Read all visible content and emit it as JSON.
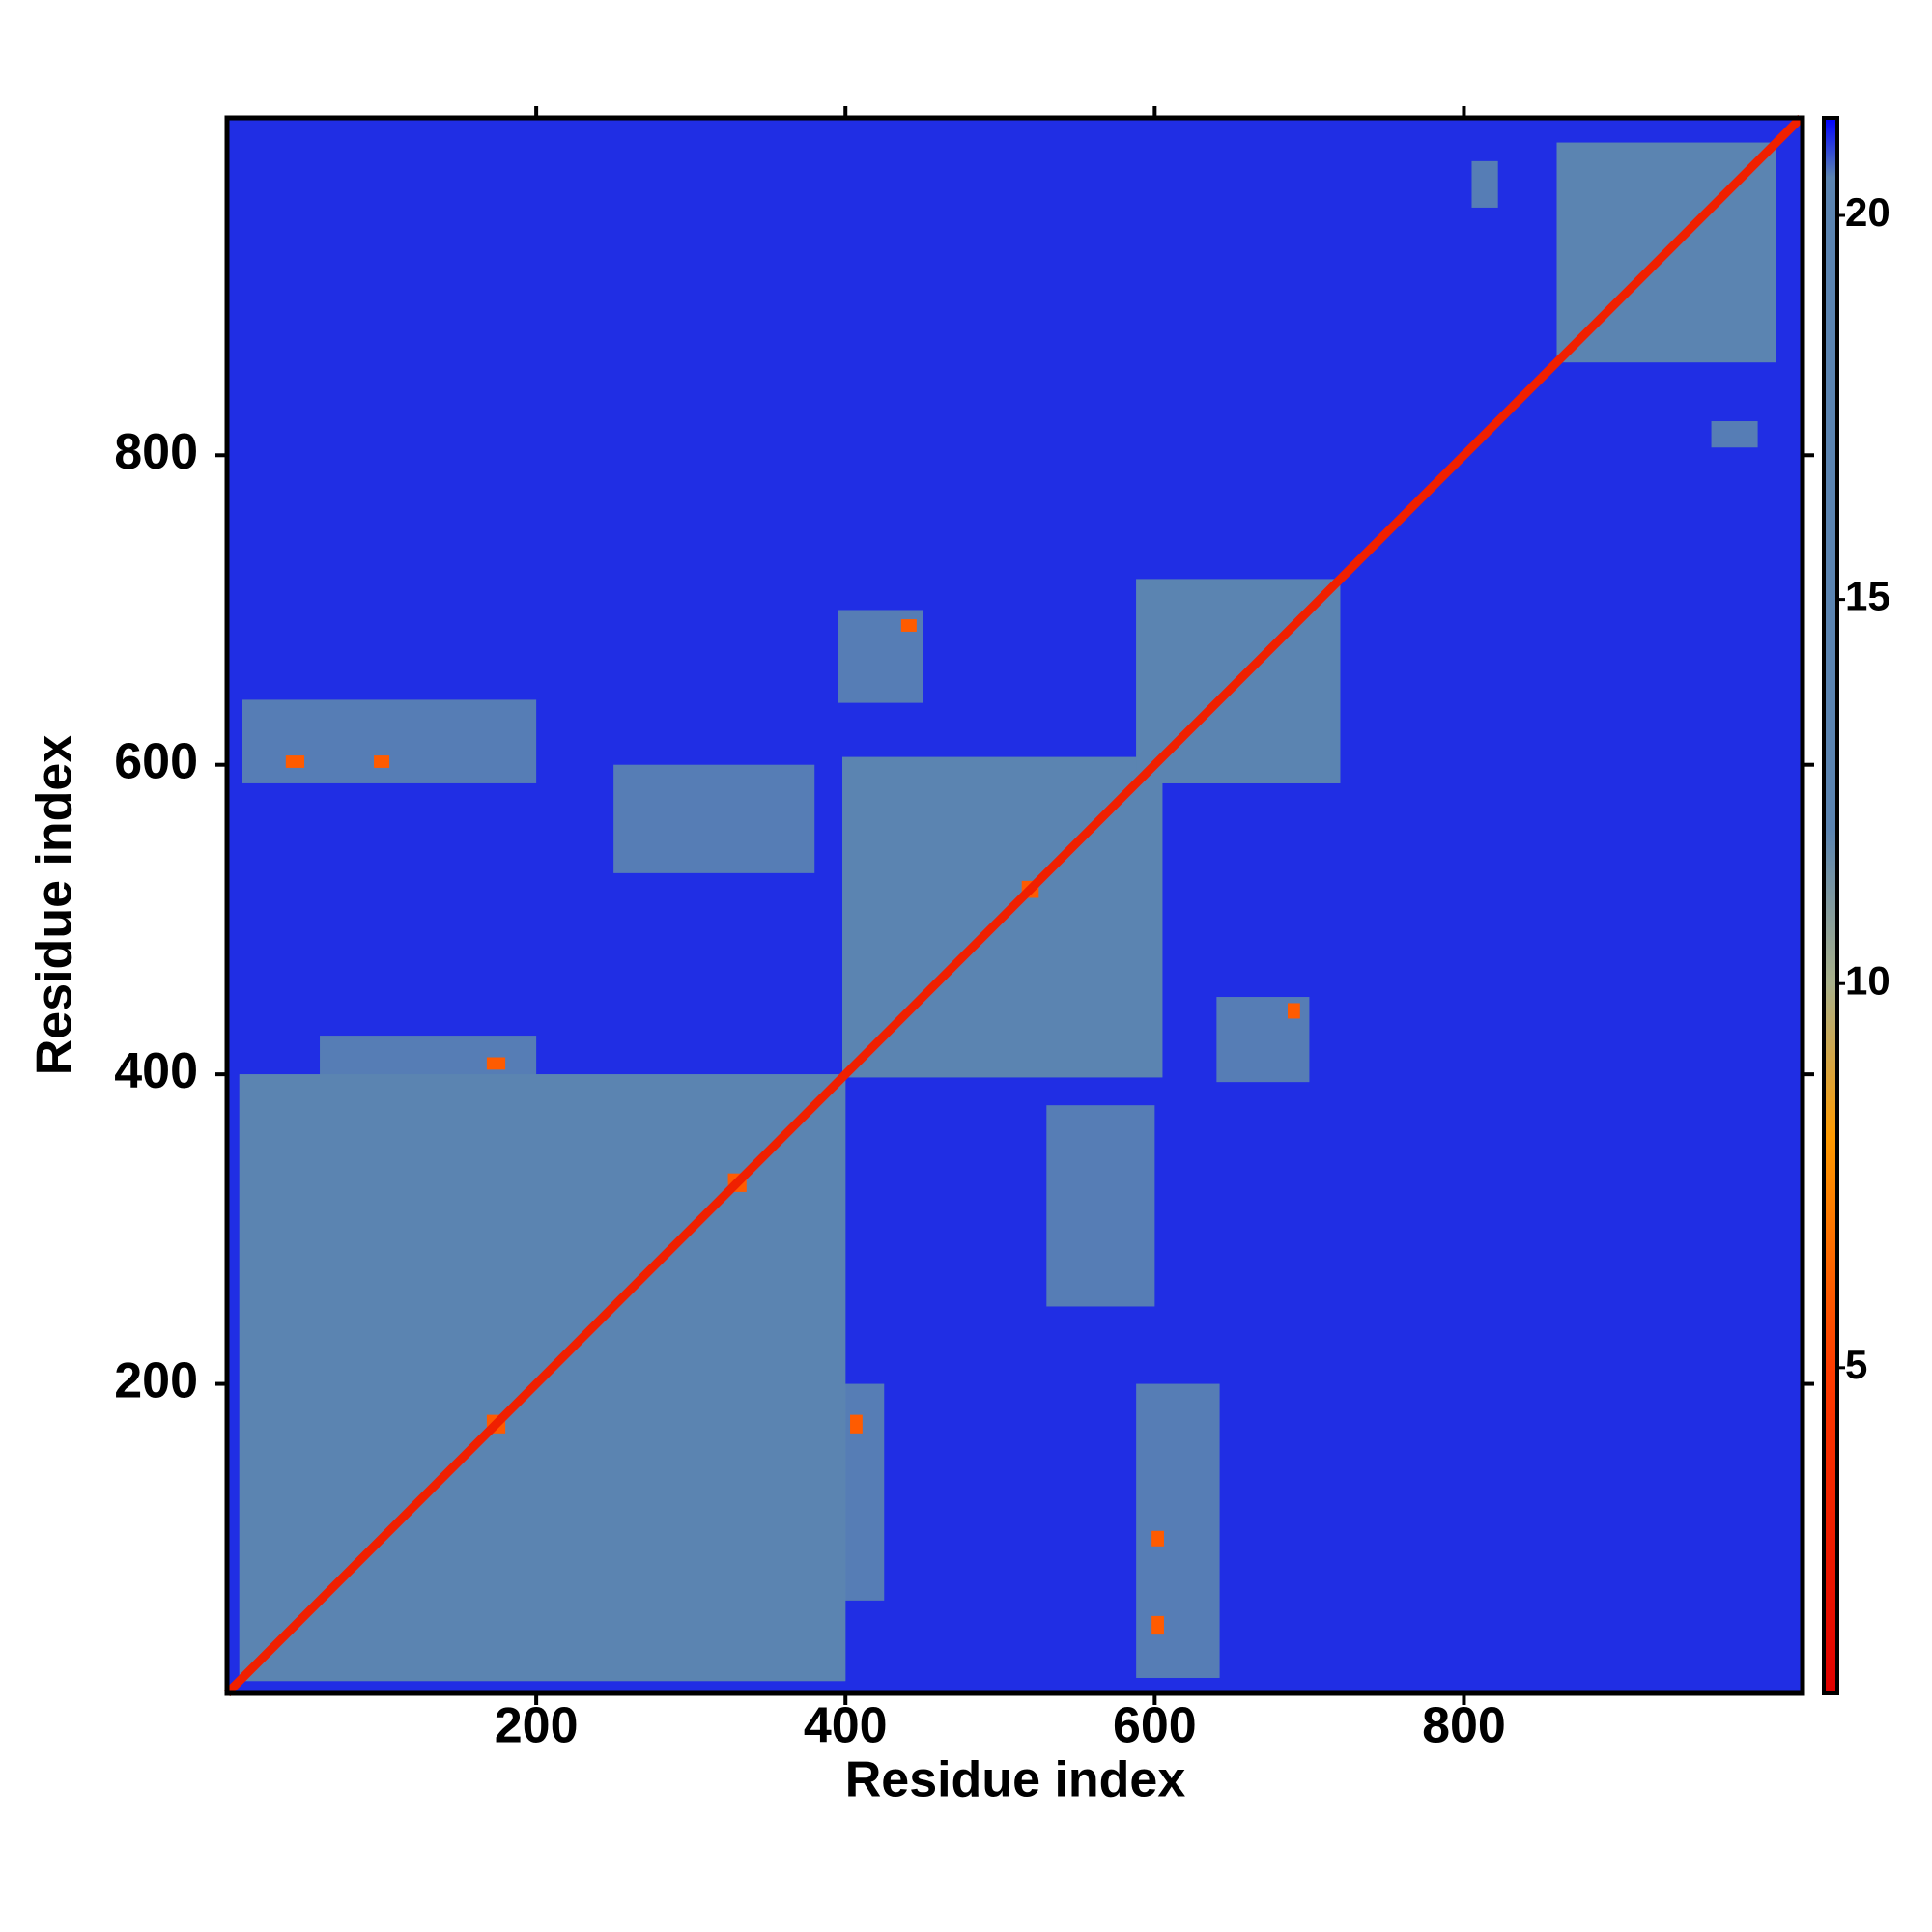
{
  "chart_data": {
    "type": "heatmap",
    "x_label": "Residue index",
    "y_label": "Residue index",
    "xlim": [
      0,
      1019
    ],
    "ylim": [
      0,
      1018
    ],
    "xticks": [
      200,
      400,
      600,
      800
    ],
    "yticks": [
      200,
      400,
      600,
      800
    ],
    "background_value": 21,
    "diagonal_value": 3,
    "symmetric": true,
    "colorscale": [
      [
        0.76,
        "#e00000"
      ],
      [
        5,
        "#ff3c00"
      ],
      [
        8,
        "#ff9a00"
      ],
      [
        10,
        "#a9b18a"
      ],
      [
        12,
        "#5b84b1"
      ],
      [
        20.5,
        "#5b84b1"
      ],
      [
        21.27,
        "#0000ff"
      ]
    ],
    "colorbar_lim": [
      0.76,
      21.27
    ],
    "colorbar_ticks": [
      5,
      10,
      15,
      20
    ],
    "regions": [
      {
        "x": [
          8,
          400
        ],
        "y": [
          8,
          400
        ],
        "value": 15
      },
      {
        "x": [
          398,
          605
        ],
        "y": [
          398,
          605
        ],
        "value": 15
      },
      {
        "x": [
          588,
          720
        ],
        "y": [
          588,
          720
        ],
        "value": 15
      },
      {
        "x": [
          860,
          1002
        ],
        "y": [
          860,
          1002
        ],
        "value": 15
      },
      {
        "x": [
          588,
          642
        ],
        "y": [
          10,
          200
        ],
        "value": 15
      },
      {
        "x": [
          530,
          600
        ],
        "y": [
          250,
          380
        ],
        "value": 15
      },
      {
        "x": [
          398,
          425
        ],
        "y": [
          60,
          200
        ],
        "value": 15
      },
      {
        "x": [
          640,
          700
        ],
        "y": [
          395,
          450
        ],
        "value": 15
      },
      {
        "x": [
          960,
          990
        ],
        "y": [
          805,
          822
        ],
        "value": 15
      },
      {
        "x": [
          598,
          606
        ],
        "y": [
          38,
          50
        ],
        "value": 6
      },
      {
        "x": [
          598,
          606
        ],
        "y": [
          95,
          105
        ],
        "value": 6
      },
      {
        "x": [
          403,
          411
        ],
        "y": [
          168,
          180
        ],
        "value": 6
      },
      {
        "x": [
          686,
          694
        ],
        "y": [
          436,
          446
        ],
        "value": 6
      },
      {
        "x": [
          170,
          180
        ],
        "y": [
          168,
          178
        ],
        "value": 6
      },
      {
        "x": [
          326,
          336
        ],
        "y": [
          324,
          334
        ],
        "value": 6
      },
      {
        "x": [
          515,
          525
        ],
        "y": [
          514,
          524
        ],
        "value": 6
      }
    ]
  }
}
